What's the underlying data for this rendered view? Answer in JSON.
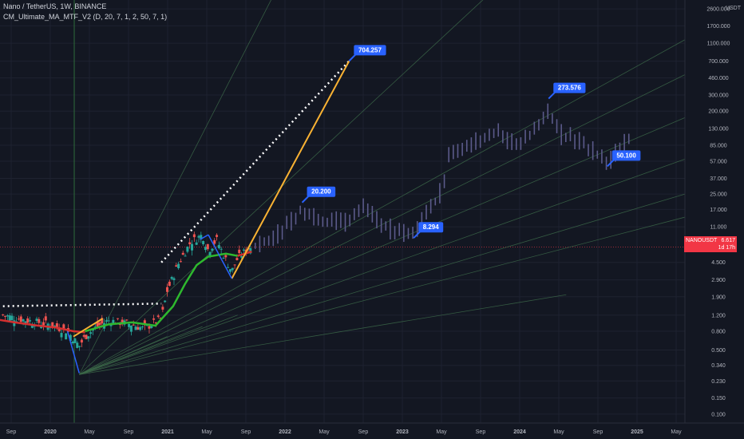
{
  "legend": {
    "symbol_line": "Nano / TetherUS, 1W, BINANCE",
    "indicator_line": "CM_Ultimate_MA_MTF_V2 (D, 20, 7, 1, 2, 50, 7, 1)"
  },
  "axis": {
    "currency": "USDT"
  },
  "price_tag": {
    "symbol": "NANOUSDT",
    "value": "6.617",
    "countdown": "1d 17h",
    "color": "#f23645"
  },
  "colors": {
    "background": "#131722",
    "grid": "#1e2230",
    "candle_up": "#26a69a",
    "candle_down": "#ef5350",
    "projection": "#5b5a8a",
    "ma_red": "#d32f2f",
    "ma_green": "#2eb82e",
    "orange_line": "#f9b233",
    "blue_line": "#2962ff",
    "fan_line": "#3d6b4a",
    "label_bg": "#2962ff"
  },
  "chart_data": {
    "type": "line",
    "scale": "log",
    "x_ticks": [
      "Sep",
      "2020",
      "May",
      "Sep",
      "2021",
      "May",
      "Sep",
      "2022",
      "May",
      "Sep",
      "2023",
      "May",
      "Sep",
      "2024",
      "May",
      "Sep",
      "2025",
      "May"
    ],
    "y_ticks": [
      "2600.000",
      "1700.000",
      "1100.000",
      "700.000",
      "460.000",
      "300.000",
      "200.000",
      "130.000",
      "85.000",
      "57.000",
      "37.000",
      "25.000",
      "17.000",
      "11.000",
      "6.617",
      "4.500",
      "2.900",
      "1.900",
      "1.200",
      "0.800",
      "0.500",
      "0.340",
      "0.230",
      "0.150",
      "0.100"
    ],
    "y_range": [
      0.08,
      3000
    ],
    "annotations": [
      {
        "label": "704.257",
        "x": 2022.55,
        "y": 704.257
      },
      {
        "label": "20.200",
        "x": 2022.15,
        "y": 20.2
      },
      {
        "label": "8.294",
        "x": 2023.1,
        "y": 8.294
      },
      {
        "label": "273.576",
        "x": 2024.25,
        "y": 273.576
      },
      {
        "label": "50.100",
        "x": 2024.75,
        "y": 50.1
      }
    ],
    "last_price": 6.617
  }
}
